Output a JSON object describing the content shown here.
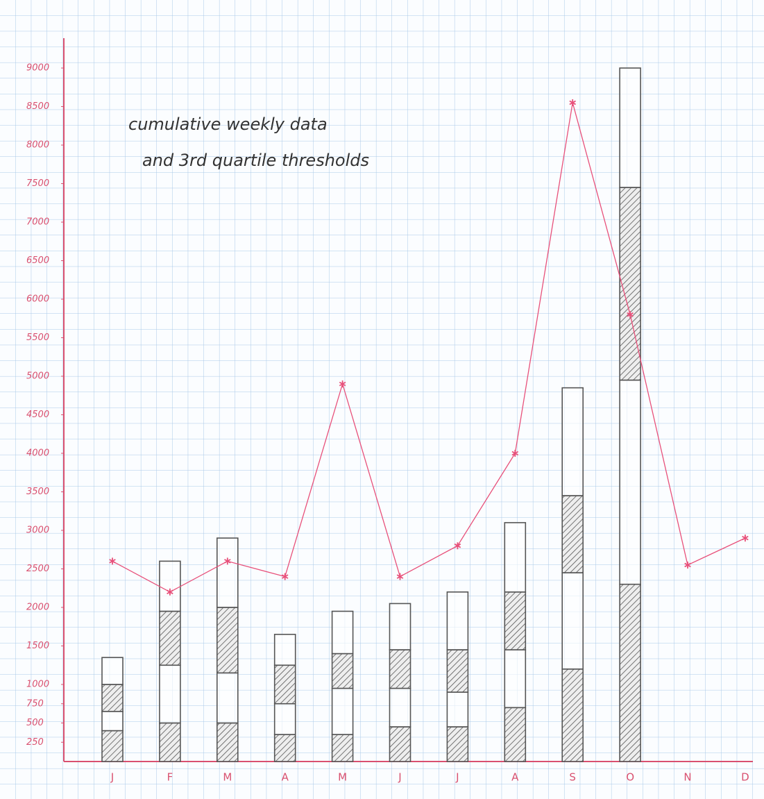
{
  "chart_data": {
    "type": "bar",
    "annotation": [
      "cumulative weekly data",
      "and 3rd quartile thresholds"
    ],
    "categories": [
      "J",
      "F",
      "M",
      "A",
      "M",
      "J",
      "J",
      "A",
      "S",
      "O",
      "N",
      "D"
    ],
    "stacked": true,
    "series": [
      {
        "type": "bar",
        "color": "#555555",
        "hatch": true,
        "values": [
          400,
          500,
          500,
          350,
          350,
          450,
          450,
          700,
          1200,
          2300,
          null,
          null
        ]
      },
      {
        "type": "bar",
        "color": "#555555",
        "hatch": false,
        "values": [
          250,
          750,
          650,
          400,
          600,
          500,
          450,
          750,
          1250,
          2650,
          null,
          null
        ]
      },
      {
        "type": "bar",
        "color": "#555555",
        "hatch": true,
        "values": [
          350,
          700,
          850,
          500,
          450,
          500,
          550,
          750,
          1000,
          2500,
          null,
          null
        ]
      },
      {
        "type": "bar",
        "color": "#555555",
        "hatch": false,
        "values": [
          350,
          650,
          900,
          400,
          550,
          600,
          750,
          900,
          1400,
          1550,
          null,
          null
        ]
      },
      {
        "type": "line",
        "color": "#e8507a",
        "marker": "star",
        "values": [
          2600,
          2200,
          2600,
          2400,
          4900,
          2400,
          2800,
          4000,
          8550,
          5800,
          2550,
          2900
        ]
      }
    ],
    "axis_color": "#d9506f",
    "ylim": [
      0,
      9000
    ],
    "yticks": [
      250,
      500,
      750,
      1000,
      1500,
      2000,
      2500,
      3000,
      3500,
      4000,
      4500,
      5000,
      5500,
      6000,
      6500,
      7000,
      7500,
      8000,
      8500,
      9000
    ]
  }
}
